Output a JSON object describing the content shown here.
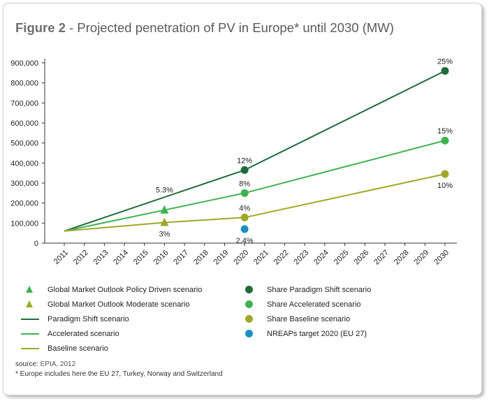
{
  "title": {
    "figure": "Figure 2",
    "text": " - Projected penetration of PV in Europe* until 2030 (MW)"
  },
  "chart_data": {
    "type": "line",
    "x": [
      2011,
      2012,
      2013,
      2014,
      2015,
      2016,
      2017,
      2018,
      2019,
      2020,
      2021,
      2022,
      2023,
      2024,
      2025,
      2026,
      2027,
      2028,
      2029,
      2030
    ],
    "ylim": [
      0,
      900000
    ],
    "yticks": [
      0,
      100000,
      200000,
      300000,
      400000,
      500000,
      600000,
      700000,
      800000,
      900000
    ],
    "ytick_labels": [
      "0",
      "100,000",
      "200,000",
      "300,000",
      "400,000",
      "500,000",
      "600,000",
      "700,000",
      "800,000",
      "900,000"
    ],
    "xlabel": "",
    "ylabel": "",
    "grid": false,
    "series": [
      {
        "name": "Paradigm Shift scenario",
        "color": "#1f6b3a",
        "points": [
          [
            2011,
            60000
          ],
          [
            2020,
            365000
          ],
          [
            2030,
            860000
          ]
        ]
      },
      {
        "name": "Accelerated scenario",
        "color": "#3fb24f",
        "points": [
          [
            2011,
            60000
          ],
          [
            2016,
            165000
          ],
          [
            2020,
            250000
          ],
          [
            2030,
            512000
          ]
        ]
      },
      {
        "name": "Baseline scenario",
        "color": "#9fa82a",
        "points": [
          [
            2011,
            60000
          ],
          [
            2016,
            103000
          ],
          [
            2020,
            128000
          ],
          [
            2030,
            345000
          ]
        ]
      }
    ],
    "markers": [
      {
        "series": "Global Market Outlook Policy Driven scenario",
        "shape": "triangle",
        "color": "#3fb24f",
        "x": 2016,
        "y": 165000
      },
      {
        "series": "Global Market Outlook Moderate scenario",
        "shape": "triangle",
        "color": "#9fa82a",
        "x": 2016,
        "y": 103000
      },
      {
        "series": "Share Paradigm Shift scenario",
        "shape": "circle",
        "color": "#1f6b3a",
        "x": 2020,
        "y": 365000
      },
      {
        "series": "Share Paradigm Shift scenario",
        "shape": "circle",
        "color": "#1f6b3a",
        "x": 2030,
        "y": 860000
      },
      {
        "series": "Share Accelerated scenario",
        "shape": "circle",
        "color": "#3fb24f",
        "x": 2020,
        "y": 250000
      },
      {
        "series": "Share Accelerated scenario",
        "shape": "circle",
        "color": "#3fb24f",
        "x": 2030,
        "y": 512000
      },
      {
        "series": "Share Baseline scenario",
        "shape": "circle",
        "color": "#9fa82a",
        "x": 2020,
        "y": 128000
      },
      {
        "series": "Share Baseline scenario",
        "shape": "circle",
        "color": "#9fa82a",
        "x": 2030,
        "y": 345000
      },
      {
        "series": "NREAPs target 2020 (EU 27)",
        "shape": "circle",
        "color": "#1b8fc4",
        "x": 2020,
        "y": 70000
      }
    ],
    "annotations": [
      {
        "text": "5.3%",
        "x": 2016,
        "y": 165000,
        "pos": "above-far"
      },
      {
        "text": "3%",
        "x": 2016,
        "y": 103000,
        "pos": "below"
      },
      {
        "text": "12%",
        "x": 2020,
        "y": 365000,
        "pos": "above"
      },
      {
        "text": "8%",
        "x": 2020,
        "y": 250000,
        "pos": "above"
      },
      {
        "text": "4%",
        "x": 2020,
        "y": 128000,
        "pos": "above"
      },
      {
        "text": "2.4%",
        "x": 2020,
        "y": 70000,
        "pos": "below"
      },
      {
        "text": "25%",
        "x": 2030,
        "y": 860000,
        "pos": "above"
      },
      {
        "text": "15%",
        "x": 2030,
        "y": 512000,
        "pos": "above"
      },
      {
        "text": "10%",
        "x": 2030,
        "y": 345000,
        "pos": "below"
      }
    ]
  },
  "legend": {
    "left": [
      {
        "type": "triangle",
        "color": "#3fb24f",
        "label": "Global Market Outlook Policy Driven scenario"
      },
      {
        "type": "triangle",
        "color": "#9fa82a",
        "label": "Global Market Outlook Moderate scenario"
      },
      {
        "type": "line",
        "color": "#1f6b3a",
        "label": "Paradigm Shift scenario"
      },
      {
        "type": "line",
        "color": "#3fb24f",
        "label": "Accelerated scenario"
      },
      {
        "type": "line",
        "color": "#9fa82a",
        "label": "Baseline scenario"
      }
    ],
    "right": [
      {
        "type": "circle",
        "color": "#1f6b3a",
        "label": "Share Paradigm Shift scenario"
      },
      {
        "type": "circle",
        "color": "#3fb24f",
        "label": "Share Accelerated scenario"
      },
      {
        "type": "circle",
        "color": "#9fa82a",
        "label": "Share Baseline scenario"
      },
      {
        "type": "circle",
        "color": "#1b8fc4",
        "label": "NREAPs target 2020 (EU 27)"
      }
    ]
  },
  "footer": {
    "source_prefix": "source:",
    "source_text": " EPIA, 2012",
    "note": "* Europe includes here the EU 27, Turkey, Norway and Switzerland"
  }
}
